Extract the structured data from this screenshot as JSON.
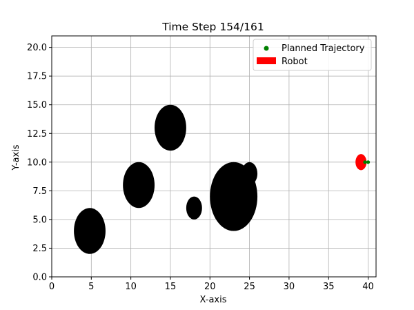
{
  "chart_data": {
    "type": "scatter",
    "title": "Time Step 154/161",
    "xlabel": "X-axis",
    "ylabel": "Y-axis",
    "xlim": [
      0,
      41
    ],
    "ylim": [
      0,
      21
    ],
    "grid": true,
    "x_ticks": [
      0,
      5,
      10,
      15,
      20,
      25,
      30,
      35,
      40
    ],
    "x_tick_labels": [
      "0",
      "5",
      "10",
      "15",
      "20",
      "25",
      "30",
      "35",
      "40"
    ],
    "y_ticks": [
      0,
      2.5,
      5,
      7.5,
      10,
      12.5,
      15,
      17.5,
      20
    ],
    "y_tick_labels": [
      "0.0",
      "2.5",
      "5.0",
      "7.5",
      "10.0",
      "12.5",
      "15.0",
      "17.5",
      "20.0"
    ],
    "legend_position": "top-right",
    "legend": [
      {
        "label": "Planned Trajectory",
        "marker": "dot",
        "color": "#008000"
      },
      {
        "label": "Robot",
        "marker": "patch",
        "color": "#ff0000"
      }
    ],
    "obstacles": [
      {
        "cx": 4.8,
        "cy": 4.0,
        "r": 2.0,
        "color": "#000000"
      },
      {
        "cx": 11.0,
        "cy": 8.0,
        "r": 2.0,
        "color": "#000000"
      },
      {
        "cx": 15.0,
        "cy": 13.0,
        "r": 2.0,
        "color": "#000000"
      },
      {
        "cx": 18.0,
        "cy": 6.0,
        "r": 1.0,
        "color": "#000000"
      },
      {
        "cx": 23.0,
        "cy": 7.0,
        "r": 3.0,
        "color": "#000000"
      },
      {
        "cx": 25.0,
        "cy": 9.0,
        "r": 1.0,
        "color": "#000000"
      }
    ],
    "robot": {
      "cx": 39.1,
      "cy": 10.0,
      "r": 0.7,
      "color": "#ff0000"
    },
    "series": [
      {
        "name": "Planned Trajectory",
        "color": "#008000",
        "points": [
          [
            39.6,
            10.0
          ],
          [
            40.0,
            10.0
          ]
        ]
      }
    ]
  }
}
